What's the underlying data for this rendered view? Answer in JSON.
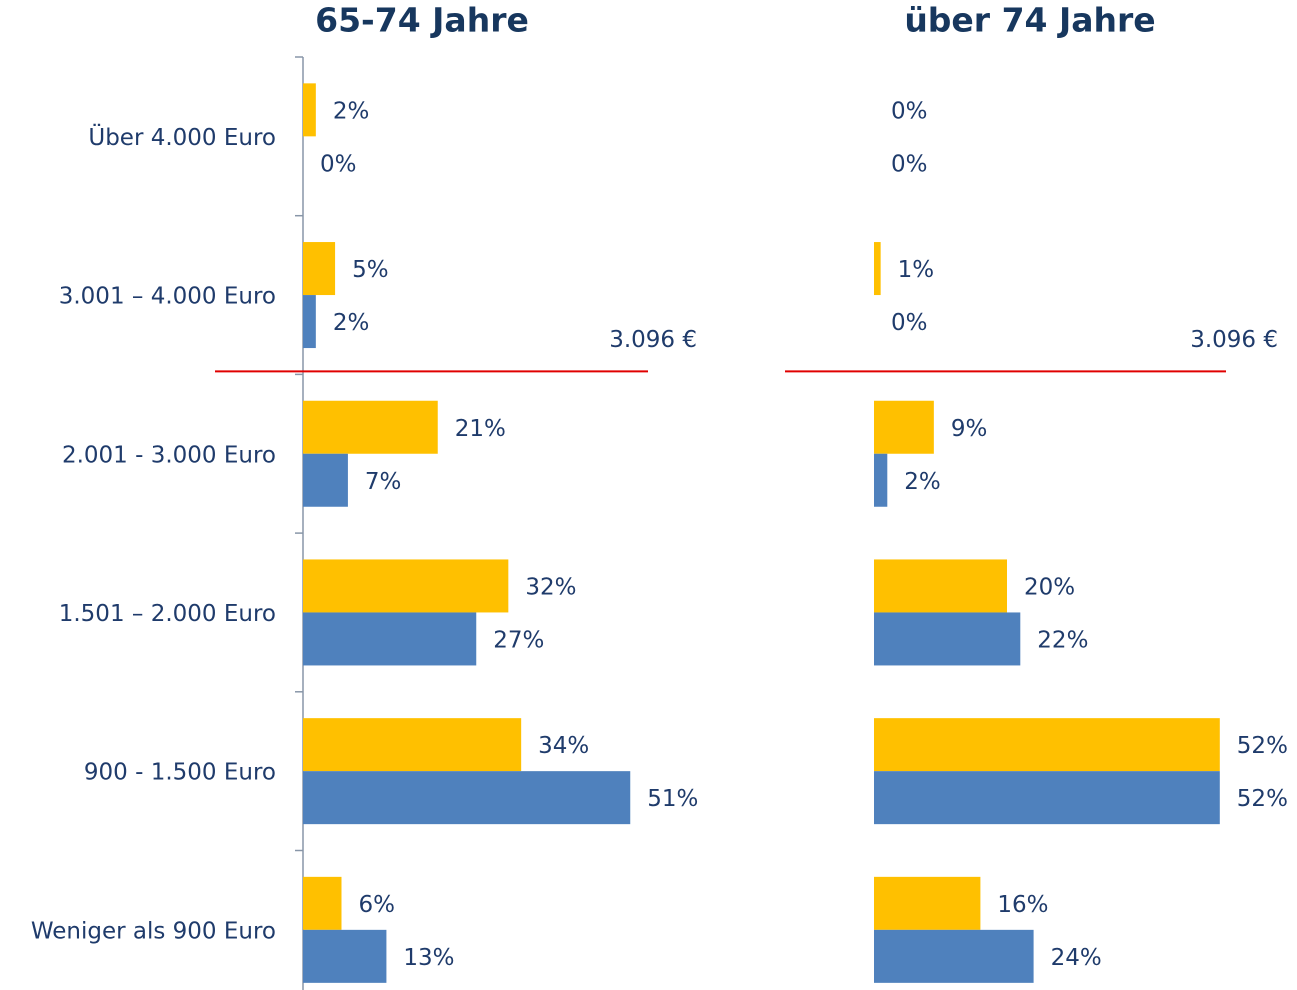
{
  "chart_data": [
    {
      "type": "bar",
      "orientation": "horizontal",
      "title": "65-74 Jahre",
      "categories": [
        "Über 4.000 Euro",
        "3.001 – 4.000 Euro",
        "2.001 - 3.000 Euro",
        "1.501 – 2.000 Euro",
        "900 - 1.500 Euro",
        "Weniger als 900 Euro"
      ],
      "series": [
        {
          "color": "#FFC000",
          "values": [
            2,
            5,
            21,
            32,
            34,
            6
          ],
          "value_labels": [
            "2%",
            "5%",
            "21%",
            "32%",
            "34%",
            "6%"
          ]
        },
        {
          "color": "#4F81BD",
          "values": [
            0,
            2,
            7,
            27,
            51,
            13
          ],
          "value_labels": [
            "0%",
            "2%",
            "7%",
            "27%",
            "51%",
            "13%"
          ]
        }
      ],
      "xlim": [
        0,
        60
      ],
      "annotation": "3.096 €",
      "line_color": "#E00000"
    },
    {
      "type": "bar",
      "orientation": "horizontal",
      "title": "über 74 Jahre",
      "series": [
        {
          "color": "#FFC000",
          "values": [
            0,
            1,
            9,
            20,
            52,
            16
          ],
          "value_labels": [
            "0%",
            "1%",
            "9%",
            "20%",
            "52%",
            "16%"
          ]
        },
        {
          "color": "#4F81BD",
          "values": [
            0,
            0,
            2,
            22,
            52,
            24
          ],
          "value_labels": [
            "0%",
            "0%",
            "2%",
            "22%",
            "52%",
            "24%"
          ]
        }
      ],
      "xlim": [
        0,
        60
      ],
      "annotation": "3.096 €",
      "line_color": "#E00000"
    }
  ]
}
